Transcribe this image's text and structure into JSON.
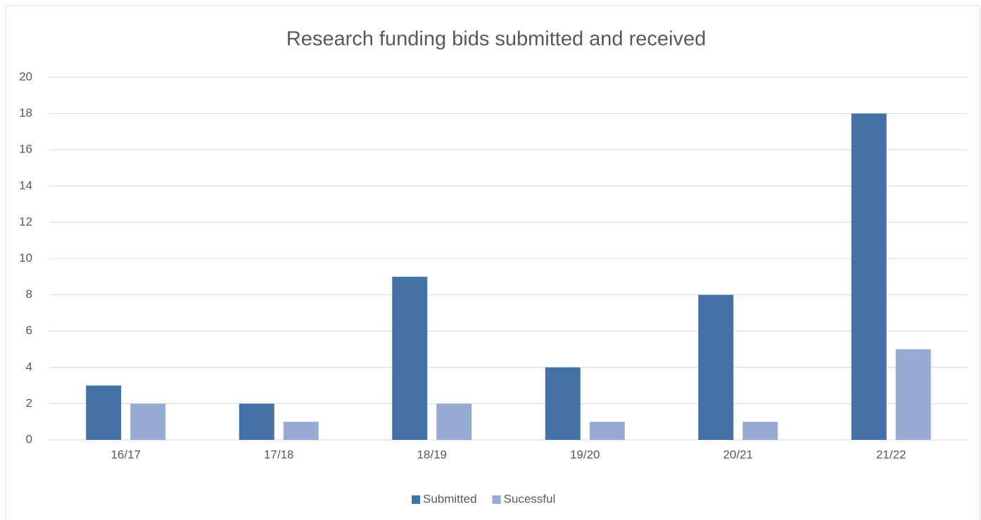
{
  "chart_data": {
    "type": "bar",
    "title": "Research funding bids submitted and received",
    "categories": [
      "16/17",
      "17/18",
      "18/19",
      "19/20",
      "20/21",
      "21/22"
    ],
    "series": [
      {
        "name": "Submitted",
        "color": "#4472a6",
        "values": [
          3,
          2,
          9,
          4,
          8,
          18
        ]
      },
      {
        "name": "Sucessful",
        "color": "#97abd2",
        "values": [
          2,
          1,
          2,
          1,
          1,
          5
        ]
      }
    ],
    "ylim": [
      0,
      20
    ],
    "yticks": [
      0,
      2,
      4,
      6,
      8,
      10,
      12,
      14,
      16,
      18,
      20
    ],
    "grid": true,
    "legend": "bottom"
  }
}
